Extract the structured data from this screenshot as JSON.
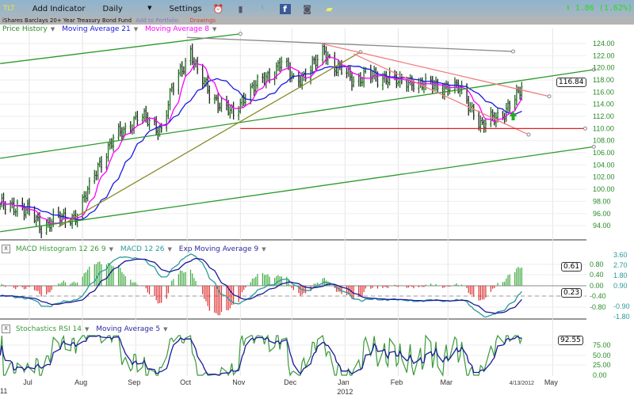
{
  "toolbar": {
    "symbol": "TLT",
    "add_indicator": "Add Indicator",
    "period": "Daily",
    "period_arrow": "▼",
    "settings": "Settings",
    "icons": [
      "alarm-clock-icon",
      "book-icon",
      "twitter-icon",
      "facebook-icon",
      "camera-icon",
      "note-icon"
    ],
    "change_arrow": "⬆",
    "change": "1.86 (1.62%)",
    "change_color": "#22dd22"
  },
  "subheader": {
    "name": "iShares Barclays 20+ Year Treasury Bond Fund",
    "add_portfolio": "Add to Portfolio",
    "drawings": "Drawings"
  },
  "legends": {
    "price": [
      "Price History",
      "Moving Average 21",
      "Moving Average 8"
    ],
    "macd": [
      "MACD Histogram 12 26 9",
      "MACD 12 26",
      "Exp Moving Average 9"
    ],
    "stoch": [
      "Stochastics RSI 14",
      "Moving Average 5"
    ],
    "close_label": "X",
    "dropdown": "▼"
  },
  "colors": {
    "price_bars": "#1f6b1f",
    "ma21": "#1a1ae0",
    "ma8": "#ff00ff",
    "hist_up": "#3fa83f",
    "hist_down": "#dd3333",
    "macd": "#2a9a9a",
    "signal": "#1a1a9a",
    "stoch": "#3a9a3a",
    "stoch_ma": "#1a1a9a",
    "axis_text": "#2a8a2a",
    "axis_text2": "#2a9a9a"
  },
  "chart_data": [
    {
      "type": "ohlc",
      "title": "Price History",
      "ylim": [
        93,
        125
      ],
      "y_ticks": [
        "124.00",
        "122.00",
        "120.00",
        "118.00",
        "116.00",
        "114.00",
        "112.00",
        "110.00",
        "108.00",
        "106.00",
        "104.00",
        "102.00",
        "100.00",
        "98.00",
        "96.00",
        "94.00"
      ],
      "last_value": "116.84",
      "x_tick_labels": [
        "Jul",
        "Aug",
        "Sep",
        "Oct",
        "Nov",
        "Dec",
        "Jan",
        "Feb",
        "Mar",
        "4/13/2012",
        "May"
      ],
      "x_tick_dates": [
        "2011-07-01",
        "2011-08-01",
        "2011-09-01",
        "2011-10-01",
        "2011-11-01",
        "2011-12-01",
        "2012-01-01",
        "2012-02-01",
        "2012-03-01",
        "2012-04-13",
        "2012-05-01"
      ],
      "year_labels": [
        "11",
        "2012"
      ],
      "grid": true,
      "closes": [
        [
          "2011-06-14",
          97
        ],
        [
          "2011-06-24",
          97.5
        ],
        [
          "2011-07-01",
          96
        ],
        [
          "2011-07-08",
          94
        ],
        [
          "2011-07-15",
          95
        ],
        [
          "2011-07-22",
          95
        ],
        [
          "2011-07-29",
          96
        ],
        [
          "2011-08-05",
          100
        ],
        [
          "2011-08-10",
          104
        ],
        [
          "2011-08-19",
          108
        ],
        [
          "2011-08-26",
          110
        ],
        [
          "2011-09-02",
          112
        ],
        [
          "2011-09-09",
          111
        ],
        [
          "2011-09-16",
          110
        ],
        [
          "2011-09-22",
          116
        ],
        [
          "2011-09-28",
          120
        ],
        [
          "2011-10-03",
          123
        ],
        [
          "2011-10-07",
          119
        ],
        [
          "2011-10-14",
          116
        ],
        [
          "2011-10-21",
          114
        ],
        [
          "2011-10-28",
          112
        ],
        [
          "2011-11-04",
          116
        ],
        [
          "2011-11-11",
          117
        ],
        [
          "2011-11-18",
          119
        ],
        [
          "2011-11-25",
          121
        ],
        [
          "2011-12-02",
          118
        ],
        [
          "2011-12-09",
          119
        ],
        [
          "2011-12-16",
          121
        ],
        [
          "2011-12-20",
          123
        ],
        [
          "2011-12-27",
          120
        ],
        [
          "2012-01-06",
          118
        ],
        [
          "2012-01-13",
          119
        ],
        [
          "2012-01-20",
          118
        ],
        [
          "2012-01-27",
          119
        ],
        [
          "2012-02-03",
          117
        ],
        [
          "2012-02-10",
          118
        ],
        [
          "2012-02-17",
          117
        ],
        [
          "2012-02-24",
          117
        ],
        [
          "2012-03-02",
          117
        ],
        [
          "2012-03-09",
          116
        ],
        [
          "2012-03-16",
          113
        ],
        [
          "2012-03-21",
          110
        ],
        [
          "2012-03-28",
          112
        ],
        [
          "2012-04-04",
          113
        ],
        [
          "2012-04-10",
          115
        ],
        [
          "2012-04-13",
          116.84
        ]
      ],
      "moving_averages": [
        21,
        8
      ],
      "trendlines": [
        {
          "color": "#2a9a2a",
          "from": [
            "2011-06-14",
            120.7
          ],
          "to": [
            "2011-11-01",
            125.6
          ]
        },
        {
          "color": "#2a9a2a",
          "from": [
            "2011-06-14",
            105.1
          ],
          "to": [
            "2012-05-25",
            119.7
          ]
        },
        {
          "color": "#2a9a2a",
          "from": [
            "2011-06-14",
            93
          ],
          "to": [
            "2012-05-25",
            107
          ]
        },
        {
          "color": "#888888",
          "from": [
            "2011-10-01",
            125
          ],
          "to": [
            "2012-04-08",
            122.7
          ]
        },
        {
          "color": "#8a8a2a",
          "from": [
            "2011-07-18",
            93.8
          ],
          "to": [
            "2012-01-10",
            122.6
          ]
        },
        {
          "color": "#f08080",
          "from": [
            "2011-12-18",
            124
          ],
          "to": [
            "2012-04-29",
            115.3
          ]
        },
        {
          "color": "#f08080",
          "from": [
            "2012-01-06",
            122.3
          ],
          "to": [
            "2012-04-17",
            109
          ]
        },
        {
          "color": "#dd2222",
          "from": [
            "2011-11-01",
            110
          ],
          "to": [
            "2012-05-20",
            110
          ]
        }
      ],
      "annotation_arrow": {
        "date": "2012-04-08",
        "value": 112,
        "color": "#22aa22"
      }
    },
    {
      "type": "bar+line",
      "title": "MACD Histogram 12 26 9 / MACD 12 26 / Exp Moving Average 9",
      "hist_ticks": [
        "0.80",
        "0.40",
        "0.00",
        "-0.40",
        "-0.80"
      ],
      "macd_ticks": [
        "3.60",
        "2.70",
        "1.80",
        "0.90",
        "-0.90",
        "-1.80"
      ],
      "hist_last": "0.61",
      "macd_last": "0.23"
    },
    {
      "type": "line",
      "title": "Stochastics RSI 14 / Moving Average 5",
      "ylim": [
        0,
        100
      ],
      "y_ticks": [
        "75.00",
        "50.00",
        "25.00",
        "0.00"
      ],
      "last_value": "92.55"
    }
  ]
}
